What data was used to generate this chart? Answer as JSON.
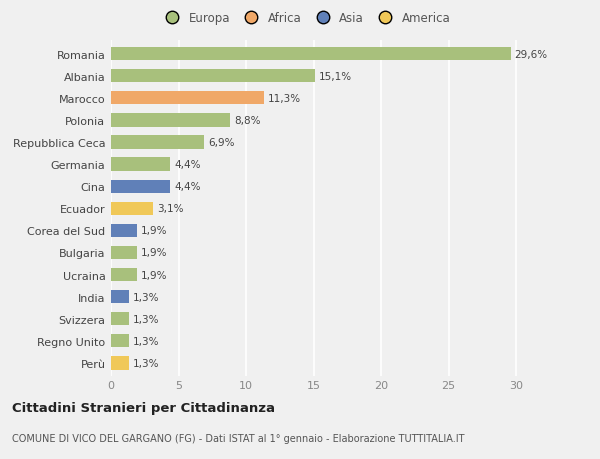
{
  "categories": [
    "Romania",
    "Albania",
    "Marocco",
    "Polonia",
    "Repubblica Ceca",
    "Germania",
    "Cina",
    "Ecuador",
    "Corea del Sud",
    "Bulgaria",
    "Ucraina",
    "India",
    "Svizzera",
    "Regno Unito",
    "Perù"
  ],
  "values": [
    29.6,
    15.1,
    11.3,
    8.8,
    6.9,
    4.4,
    4.4,
    3.1,
    1.9,
    1.9,
    1.9,
    1.3,
    1.3,
    1.3,
    1.3
  ],
  "labels": [
    "29,6%",
    "15,1%",
    "11,3%",
    "8,8%",
    "6,9%",
    "4,4%",
    "4,4%",
    "3,1%",
    "1,9%",
    "1,9%",
    "1,9%",
    "1,3%",
    "1,3%",
    "1,3%",
    "1,3%"
  ],
  "colors": [
    "#a8c07c",
    "#a8c07c",
    "#f0a868",
    "#a8c07c",
    "#a8c07c",
    "#a8c07c",
    "#6080b8",
    "#f0c858",
    "#6080b8",
    "#a8c07c",
    "#a8c07c",
    "#6080b8",
    "#a8c07c",
    "#a8c07c",
    "#f0c858"
  ],
  "legend_labels": [
    "Europa",
    "Africa",
    "Asia",
    "America"
  ],
  "legend_colors": [
    "#a8c07c",
    "#f0a868",
    "#6080b8",
    "#f0c858"
  ],
  "xlim": [
    0,
    32
  ],
  "xticks": [
    0,
    5,
    10,
    15,
    20,
    25,
    30
  ],
  "title": "Cittadini Stranieri per Cittadinanza",
  "subtitle": "COMUNE DI VICO DEL GARGANO (FG) - Dati ISTAT al 1° gennaio - Elaborazione TUTTITALIA.IT",
  "bg_color": "#f0f0f0",
  "grid_color": "#ffffff",
  "bar_height": 0.6
}
